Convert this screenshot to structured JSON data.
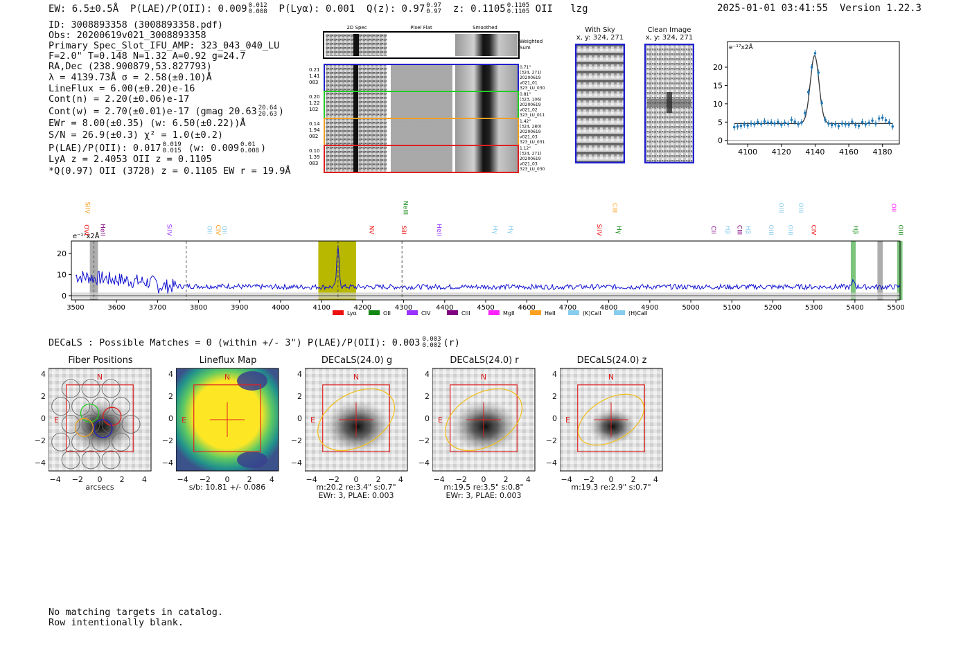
{
  "header": {
    "ew": "EW: 6.5±0.5Å",
    "plae": "P(LAE)/P(OII): 0.009",
    "plae_hi": "0.012",
    "plae_lo": "0.008",
    "plya": "P(Lyα): 0.001",
    "q": "Q(z): 0.97",
    "q_hi": "0.97",
    "q_lo": "0.97",
    "z": "z: 0.1105",
    "z_hi": "0.1105",
    "z_lo": "0.1105",
    "z_line": "OII",
    "tag": "lzg",
    "timestamp": "2025-01-01 03:41:55",
    "version": "Version 1.22.3"
  },
  "info": {
    "id": "ID: 3008893358 (3008893358.pdf)",
    "obs": "Obs: 20200619v021_3008893358",
    "primary": "Primary Spec_Slot_IFU_AMP: 323_043_040_LU",
    "fwhm": "F=2.0\"  T=0.148  N=1.32  A=0.92  g=24.7",
    "radec": "RA,Dec (238.900879,53.827793)",
    "lambda": "λ = 4139.73Å  σ = 2.58(±0.10)Å",
    "lineflux": "LineFlux = 6.00(±0.20)e-16",
    "contn": "Cont(n) = 2.20(±0.06)e-17",
    "contw": "Cont(w) = 2.70(±0.01)e-17 (gmag 20.63",
    "contw_hi": "20.64",
    "contw_lo": "20.63",
    "contw_end": ")",
    "ewr": "EWr = 8.00(±0.35) (w: 6.50(±0.22))Å",
    "sn": "S/N = 26.9(±0.3)  χ² = 1.0(±0.2)",
    "plae": "P(LAE)/P(OII): 0.017",
    "plae_hi": "0.019",
    "plae_lo": "0.015",
    "plae_w": "(w: 0.009",
    "plae_w_hi": "0.01",
    "plae_w_lo": "0.008",
    "plae_end": ")",
    "lya": "LyA z = 2.4053  OII z = 0.1105",
    "q": "*Q(0.97) OII (3728) z = 0.1105  EW r = 19.9Å"
  },
  "cutouts": {
    "col_2d": "2D Spec",
    "col_flat": "Pixel Flat",
    "col_smooth": "Smoothed",
    "weighted": "Weighted",
    "sum": "Sum",
    "rows": [
      {
        "color": "#1f1fd0",
        "left": [
          "0.21",
          "1.41",
          "083"
        ],
        "right": [
          "0.71\"",
          "(324, 271)",
          "20200619",
          "v021_01",
          "323_LU_030"
        ]
      },
      {
        "color": "#22cc22",
        "left": [
          "0.20",
          "1.22",
          "102"
        ],
        "right": [
          "0.81\"",
          "(323, 106)",
          "20200619",
          "v021_02",
          "323_LU_011"
        ]
      },
      {
        "color": "#f0a020",
        "left": [
          "0.14",
          "1.94",
          "082"
        ],
        "right": [
          "1.42\"",
          "(324, 280)",
          "20200619",
          "v021_03",
          "323_LU_031"
        ]
      },
      {
        "color": "#e02020",
        "left": [
          "0.10",
          "1.39",
          "083"
        ],
        "right": [
          "1.12\"",
          "(324, 271)",
          "20200619",
          "v021_03",
          "323_LU_030"
        ]
      }
    ]
  },
  "sky": {
    "with_sky": "With Sky",
    "with_sky_xy": "x, y: 324, 271",
    "clean": "Clean Image",
    "clean_xy": "x, y: 324, 271"
  },
  "decals": {
    "summary": "DECaLS : Possible Matches = 0 (within +/- 3\")  P(LAE)/P(OII): 0.003",
    "summary_hi": "0.003",
    "summary_lo": "0.002",
    "summary_end": "(r)",
    "panels": [
      {
        "title": "Fiber Positions",
        "caption": [
          "arcsecs"
        ],
        "kind": "fiber"
      },
      {
        "title": "Lineflux Map",
        "caption": [
          "s/b: 10.81 +/- 0.086"
        ],
        "kind": "flux"
      },
      {
        "title": "DECaLS(24.0) g",
        "caption": [
          "m:20.2  re:3.4\"  s:0.7\"",
          "EWr: 3, PLAE: 0.003"
        ],
        "kind": "g"
      },
      {
        "title": "DECaLS(24.0) r",
        "caption": [
          "m:19.5  re:3.5\"  s:0.8\"",
          "EWr: 3, PLAE: 0.003"
        ],
        "kind": "r"
      },
      {
        "title": "DECaLS(24.0) z",
        "caption": [
          "m:19.3  re:2.9\"  s:0.7\""
        ],
        "kind": "z"
      }
    ],
    "compass_n": "N",
    "compass_e": "E",
    "ticks": [
      "−4",
      "−2",
      "0",
      "2",
      "4"
    ]
  },
  "footer": {
    "line1": "No matching targets in catalog.",
    "line2": "Row intentionally blank."
  },
  "colors": {
    "spectrum": "#1010d0",
    "highlight": "#b8b800",
    "fit": "#333333",
    "points": "#1f77b4"
  },
  "chart_data": [
    {
      "type": "scatter",
      "name": "zoom spectrum",
      "ylabel": "e⁻¹⁷x2Å",
      "xlim": [
        4088,
        4190
      ],
      "ylim": [
        -1,
        27
      ],
      "xticks": [
        4100,
        4120,
        4140,
        4160,
        4180
      ],
      "yticks": [
        0,
        5,
        10,
        15,
        20
      ],
      "x": [
        4092,
        4094,
        4096,
        4098,
        4100,
        4102,
        4104,
        4106,
        4108,
        4110,
        4112,
        4114,
        4116,
        4118,
        4120,
        4122,
        4124,
        4126,
        4128,
        4130,
        4132,
        4134,
        4136,
        4138,
        4140,
        4142,
        4144,
        4146,
        4148,
        4150,
        4152,
        4154,
        4156,
        4158,
        4160,
        4162,
        4164,
        4166,
        4168,
        4170,
        4172,
        4174,
        4176,
        4178,
        4180,
        4182,
        4184,
        4186
      ],
      "y": [
        3.6,
        3.8,
        4.0,
        4.3,
        4.1,
        4.6,
        4.4,
        5.0,
        4.5,
        5.2,
        4.8,
        4.9,
        4.6,
        5.0,
        4.3,
        4.8,
        4.5,
        5.6,
        5.1,
        4.4,
        4.9,
        7.5,
        13.2,
        20.0,
        23.8,
        18.5,
        10.2,
        5.6,
        4.6,
        4.2,
        4.4,
        3.9,
        4.6,
        4.4,
        4.3,
        5.1,
        4.2,
        4.0,
        5.0,
        4.4,
        4.8,
        5.4,
        4.6,
        6.0,
        6.2,
        5.5,
        4.9,
        3.8
      ],
      "fit": {
        "center": 4139.73,
        "sigma": 2.58,
        "amplitude": 18.6,
        "continuum": 4.6
      }
    },
    {
      "type": "line",
      "name": "full spectrum",
      "ylabel": "e⁻¹⁷x2Å",
      "xlim": [
        3490,
        5510
      ],
      "ylim": [
        -2,
        26
      ],
      "xticks": [
        3500,
        3600,
        3700,
        3800,
        3900,
        4000,
        4100,
        4200,
        4300,
        4400,
        4500,
        4600,
        4700,
        4800,
        4900,
        5000,
        5100,
        5200,
        5300,
        5400,
        5500
      ],
      "yticks": [
        0,
        10,
        20
      ],
      "highlight_range": [
        4092,
        4184
      ],
      "peak": {
        "x": 4140,
        "y": 23
      },
      "dashed_lines": [
        3545,
        3770,
        4140,
        4296
      ],
      "grey_bands": [
        [
          3535,
          3555
        ],
        [
          5455,
          5468
        ]
      ],
      "green_bands": [
        [
          5390,
          5402
        ],
        [
          5503,
          5516
        ]
      ],
      "legend": [
        {
          "name": "Lyα",
          "color": "#ee1111"
        },
        {
          "name": "OII",
          "color": "#118811"
        },
        {
          "name": "CIV",
          "color": "#9933ff"
        },
        {
          "name": "CIII",
          "color": "#800080"
        },
        {
          "name": "MgII",
          "color": "#ff22ff"
        },
        {
          "name": "HeII",
          "color": "#ffa020"
        },
        {
          "name": "(K)CaII",
          "color": "#88ccee"
        },
        {
          "name": "(H)CaII",
          "color": "#88ccee"
        }
      ],
      "lines_upper": [
        {
          "label": "SiIV",
          "x": 3525,
          "color": "#ffa020"
        },
        {
          "label": "NeIII",
          "x": 4300,
          "color": "#118811"
        },
        {
          "label": "CIII",
          "x": 4810,
          "color": "#ffa020"
        },
        {
          "label": "OIII",
          "x": 5215,
          "color": "#88ccee"
        },
        {
          "label": "OIII",
          "x": 5263,
          "color": "#88ccee"
        },
        {
          "label": "OII",
          "x": 5490,
          "color": "#ff22ff"
        }
      ],
      "lines_lower": [
        {
          "label": "OVI",
          "x": 3522,
          "color": "#ee1111"
        },
        {
          "label": "HeII",
          "x": 3562,
          "color": "#800080"
        },
        {
          "label": "SiIV",
          "x": 3724,
          "color": "#9933ff"
        },
        {
          "label": "OII",
          "x": 3822,
          "color": "#88ccee"
        },
        {
          "label": "CIV",
          "x": 3843,
          "color": "#ffa020"
        },
        {
          "label": "OII",
          "x": 3858,
          "color": "#88ccee"
        },
        {
          "label": "NV",
          "x": 4217,
          "color": "#ee1111"
        },
        {
          "label": "SiII",
          "x": 4296,
          "color": "#ee1111"
        },
        {
          "label": "HeII",
          "x": 4382,
          "color": "#9933ff"
        },
        {
          "label": "Hγ",
          "x": 4519,
          "color": "#88ccee"
        },
        {
          "label": "Hγ",
          "x": 4557,
          "color": "#88ccee"
        },
        {
          "label": "SiIV",
          "x": 4772,
          "color": "#ee1111"
        },
        {
          "label": "Hγ",
          "x": 4820,
          "color": "#118811"
        },
        {
          "label": "CII",
          "x": 5051,
          "color": "#800080"
        },
        {
          "label": "Hβ",
          "x": 5085,
          "color": "#88ccee"
        },
        {
          "label": "CIII",
          "x": 5114,
          "color": "#800080"
        },
        {
          "label": "Hβ",
          "x": 5135,
          "color": "#88ccee"
        },
        {
          "label": "OIII",
          "x": 5191,
          "color": "#88ccee"
        },
        {
          "label": "OIII",
          "x": 5238,
          "color": "#88ccee"
        },
        {
          "label": "CIV",
          "x": 5295,
          "color": "#ee1111"
        },
        {
          "label": "Hβ",
          "x": 5397,
          "color": "#118811"
        },
        {
          "label": "OIII",
          "x": 5507,
          "color": "#118811"
        }
      ]
    }
  ]
}
